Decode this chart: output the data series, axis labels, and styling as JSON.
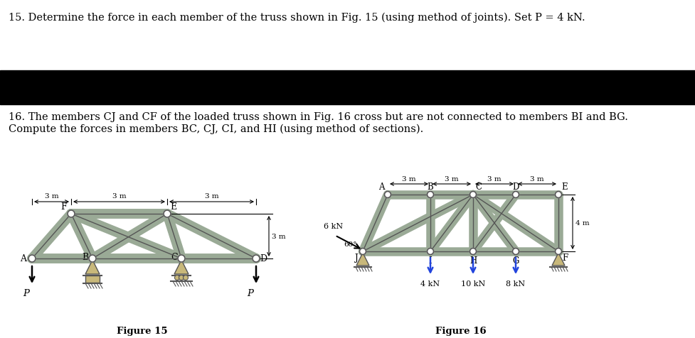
{
  "title15": "15. Determine the force in each member of the truss shown in Fig. 15 (using method of joints). Set P = 4 kN.",
  "title16_line1": "16. The members CJ and CF of the loaded truss shown in Fig. 16 cross but are not connected to members BI and BG.",
  "title16_line2": "Compute the forces in members BC, CJ, CI, and HI (using method of sections).",
  "banner_color": "#000000",
  "bg_color": "#ffffff",
  "truss_color": "#9aaa96",
  "truss_edge": "#555555",
  "text_color": "#000000",
  "fig15_caption": "Figure 15",
  "fig16_caption": "Figure 16",
  "support_color": "#c8b87a",
  "arrow_blue": "#2244dd"
}
